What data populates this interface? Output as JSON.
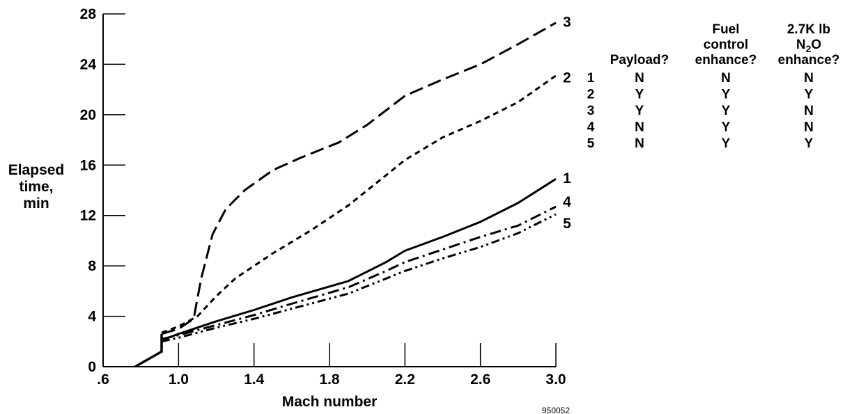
{
  "chart_data": {
    "type": "line",
    "xlabel": "Mach number",
    "ylabel_lines": [
      "Elapsed",
      "time,",
      "min"
    ],
    "xlim": [
      0.6,
      3.0
    ],
    "ylim": [
      0,
      28
    ],
    "x_ticks": [
      {
        "value": 0.6,
        "label": ".6"
      },
      {
        "value": 1.0,
        "label": "1.0"
      },
      {
        "value": 1.4,
        "label": "1.4"
      },
      {
        "value": 1.8,
        "label": "1.8"
      },
      {
        "value": 2.2,
        "label": "2.2"
      },
      {
        "value": 2.6,
        "label": "2.6"
      },
      {
        "value": 3.0,
        "label": "3.0"
      }
    ],
    "y_ticks": [
      {
        "value": 0,
        "label": "0"
      },
      {
        "value": 4,
        "label": "4"
      },
      {
        "value": 8,
        "label": "8"
      },
      {
        "value": 12,
        "label": "12"
      },
      {
        "value": 16,
        "label": "16"
      },
      {
        "value": 20,
        "label": "20"
      },
      {
        "value": 24,
        "label": "24"
      },
      {
        "value": 28,
        "label": "28"
      }
    ],
    "common_start": {
      "x": [
        0.77,
        0.91,
        0.91
      ],
      "y": [
        0,
        1.2,
        2.6
      ]
    },
    "series": [
      {
        "name": "1",
        "dash": "solid",
        "x": [
          0.91,
          1.0,
          1.2,
          1.4,
          1.6,
          1.9,
          2.1,
          2.2,
          2.4,
          2.6,
          2.8,
          3.0
        ],
        "y": [
          2.1,
          2.6,
          3.6,
          4.5,
          5.5,
          6.8,
          8.3,
          9.2,
          10.3,
          11.5,
          13.0,
          14.9
        ]
      },
      {
        "name": "2",
        "dash": "short-dash",
        "x": [
          0.91,
          1.0,
          1.1,
          1.2,
          1.3,
          1.5,
          1.7,
          1.9,
          2.1,
          2.2,
          2.4,
          2.6,
          2.8,
          3.0
        ],
        "y": [
          2.7,
          3.2,
          4.0,
          5.6,
          7.0,
          9.0,
          10.8,
          12.8,
          15.2,
          16.4,
          18.2,
          19.5,
          21.0,
          23.1
        ]
      },
      {
        "name": "3",
        "dash": "long-dash",
        "x": [
          0.91,
          1.0,
          1.08,
          1.12,
          1.18,
          1.25,
          1.35,
          1.5,
          1.65,
          1.85,
          2.0,
          2.2,
          2.4,
          2.6,
          2.8,
          3.0
        ],
        "y": [
          2.6,
          3.0,
          3.8,
          7.0,
          10.5,
          12.5,
          14.0,
          15.6,
          16.6,
          17.8,
          19.2,
          21.5,
          22.8,
          24.0,
          25.6,
          27.3
        ]
      },
      {
        "name": "4",
        "dash": "dash-dot",
        "x": [
          0.91,
          1.0,
          1.2,
          1.4,
          1.6,
          1.9,
          2.1,
          2.2,
          2.4,
          2.6,
          2.8,
          3.0
        ],
        "y": [
          2.2,
          2.5,
          3.3,
          4.1,
          5.0,
          6.3,
          7.6,
          8.3,
          9.3,
          10.3,
          11.2,
          12.7
        ]
      },
      {
        "name": "5",
        "dash": "dash-dot-dot",
        "x": [
          0.91,
          1.0,
          1.2,
          1.4,
          1.6,
          1.9,
          2.1,
          2.2,
          2.4,
          2.6,
          2.8,
          3.0
        ],
        "y": [
          2.0,
          2.3,
          3.1,
          3.8,
          4.6,
          5.8,
          7.0,
          7.6,
          8.6,
          9.5,
          10.6,
          12.1
        ]
      }
    ]
  },
  "table": {
    "headers": [
      {
        "lines": [
          "Payload?"
        ]
      },
      {
        "lines": [
          "Fuel",
          "control",
          "enhance?"
        ]
      },
      {
        "lines": [
          "2.7K lb",
          "N2O",
          "enhance?"
        ]
      }
    ],
    "rows": [
      {
        "id": "1",
        "values": [
          "N",
          "N",
          "N"
        ]
      },
      {
        "id": "2",
        "values": [
          "Y",
          "Y",
          "Y"
        ]
      },
      {
        "id": "3",
        "values": [
          "Y",
          "Y",
          "N"
        ]
      },
      {
        "id": "4",
        "values": [
          "N",
          "Y",
          "N"
        ]
      },
      {
        "id": "5",
        "values": [
          "N",
          "Y",
          "Y"
        ]
      }
    ]
  },
  "figure_code": "950052"
}
